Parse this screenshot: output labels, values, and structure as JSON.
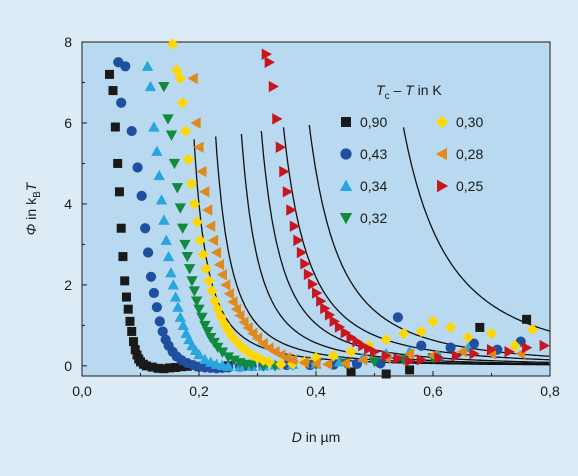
{
  "chart_data": {
    "type": "scatter",
    "title": "",
    "xlabel": {
      "var": "D",
      "rest": " in µm"
    },
    "ylabel": {
      "var": "Φ",
      "rest": " in k",
      "sub": "B",
      "end": "T"
    },
    "xlim": [
      0.0,
      0.8
    ],
    "ylim": [
      -0.25,
      8.0
    ],
    "x_ticks": [
      {
        "value": 0.0,
        "label": "0,0"
      },
      {
        "value": 0.2,
        "label": "0,2"
      },
      {
        "value": 0.4,
        "label": "0,4"
      },
      {
        "value": 0.6,
        "label": "0,6"
      },
      {
        "value": 0.8,
        "label": "0,8"
      }
    ],
    "y_ticks": [
      {
        "value": 0,
        "label": "0"
      },
      {
        "value": 2,
        "label": "2"
      },
      {
        "value": 4,
        "label": "4"
      },
      {
        "value": 6,
        "label": "6"
      },
      {
        "value": 8,
        "label": "8"
      }
    ],
    "grid": false,
    "legend": {
      "placement": "top-right",
      "title": {
        "t1": "T",
        "sub": "c",
        "rest": " – ",
        "t2": "T",
        "end": " in K"
      }
    },
    "series": [
      {
        "name": "0,90",
        "marker": "square",
        "color": "#1a1a1a",
        "points": [
          [
            0.047,
            7.2
          ],
          [
            0.053,
            6.8
          ],
          [
            0.057,
            5.9
          ],
          [
            0.061,
            5.0
          ],
          [
            0.064,
            4.3
          ],
          [
            0.067,
            3.4
          ],
          [
            0.07,
            2.7
          ],
          [
            0.073,
            2.1
          ],
          [
            0.076,
            1.7
          ],
          [
            0.079,
            1.4
          ],
          [
            0.082,
            1.1
          ],
          [
            0.085,
            0.85
          ],
          [
            0.088,
            0.6
          ],
          [
            0.091,
            0.4
          ],
          [
            0.094,
            0.27
          ],
          [
            0.097,
            0.17
          ],
          [
            0.1,
            0.1
          ],
          [
            0.105,
            0.04
          ],
          [
            0.11,
            0.0
          ],
          [
            0.12,
            -0.03
          ],
          [
            0.13,
            -0.06
          ],
          [
            0.14,
            -0.07
          ],
          [
            0.15,
            -0.05
          ],
          [
            0.16,
            -0.04
          ],
          [
            0.17,
            -0.02
          ],
          [
            0.18,
            -0.01
          ],
          [
            0.2,
            -0.02
          ],
          [
            0.22,
            -0.01
          ],
          [
            0.25,
            0.0
          ],
          [
            0.28,
            0.0
          ],
          [
            0.46,
            -0.15
          ],
          [
            0.52,
            -0.2
          ],
          [
            0.56,
            -0.1
          ],
          [
            0.68,
            0.95
          ],
          [
            0.76,
            1.15
          ]
        ]
      },
      {
        "name": "0,43",
        "marker": "circle",
        "color": "#1f4fa0",
        "points": [
          [
            0.062,
            7.5
          ],
          [
            0.067,
            6.5
          ],
          [
            0.074,
            7.4
          ],
          [
            0.085,
            5.8
          ],
          [
            0.095,
            4.9
          ],
          [
            0.102,
            4.2
          ],
          [
            0.108,
            3.4
          ],
          [
            0.113,
            2.8
          ],
          [
            0.118,
            2.2
          ],
          [
            0.123,
            1.8
          ],
          [
            0.128,
            1.45
          ],
          [
            0.133,
            1.1
          ],
          [
            0.138,
            0.85
          ],
          [
            0.143,
            0.65
          ],
          [
            0.148,
            0.5
          ],
          [
            0.155,
            0.35
          ],
          [
            0.162,
            0.23
          ],
          [
            0.17,
            0.14
          ],
          [
            0.18,
            0.07
          ],
          [
            0.19,
            0.02
          ],
          [
            0.2,
            -0.02
          ],
          [
            0.21,
            -0.04
          ],
          [
            0.22,
            -0.05
          ],
          [
            0.23,
            -0.06
          ],
          [
            0.24,
            -0.05
          ],
          [
            0.25,
            -0.04
          ],
          [
            0.27,
            -0.02
          ],
          [
            0.29,
            0.0
          ],
          [
            0.31,
            0.01
          ],
          [
            0.35,
            0.02
          ],
          [
            0.39,
            0.02
          ],
          [
            0.43,
            0.03
          ],
          [
            0.47,
            0.05
          ],
          [
            0.51,
            0.06
          ],
          [
            0.54,
            1.2
          ],
          [
            0.58,
            0.5
          ],
          [
            0.63,
            0.45
          ],
          [
            0.67,
            0.55
          ],
          [
            0.71,
            0.4
          ],
          [
            0.75,
            0.6
          ]
        ]
      },
      {
        "name": "0,34",
        "marker": "triangle-up",
        "color": "#29a6e0",
        "points": [
          [
            0.112,
            7.4
          ],
          [
            0.117,
            6.9
          ],
          [
            0.123,
            5.9
          ],
          [
            0.128,
            5.3
          ],
          [
            0.132,
            4.7
          ],
          [
            0.136,
            4.1
          ],
          [
            0.14,
            3.6
          ],
          [
            0.144,
            3.1
          ],
          [
            0.148,
            2.7
          ],
          [
            0.152,
            2.3
          ],
          [
            0.156,
            2.0
          ],
          [
            0.16,
            1.7
          ],
          [
            0.164,
            1.45
          ],
          [
            0.168,
            1.2
          ],
          [
            0.173,
            1.0
          ],
          [
            0.178,
            0.8
          ],
          [
            0.183,
            0.65
          ],
          [
            0.188,
            0.5
          ],
          [
            0.194,
            0.38
          ],
          [
            0.2,
            0.28
          ],
          [
            0.21,
            0.16
          ],
          [
            0.22,
            0.09
          ],
          [
            0.23,
            0.04
          ],
          [
            0.24,
            0.01
          ],
          [
            0.25,
            -0.01
          ],
          [
            0.27,
            -0.02
          ],
          [
            0.29,
            -0.01
          ],
          [
            0.31,
            0.0
          ],
          [
            0.33,
            0.02
          ],
          [
            0.36,
            0.04
          ],
          [
            0.4,
            0.05
          ],
          [
            0.44,
            0.1
          ],
          [
            0.48,
            0.2
          ],
          [
            0.52,
            0.3
          ],
          [
            0.56,
            0.35
          ],
          [
            0.61,
            0.25
          ],
          [
            0.66,
            0.45
          ]
        ]
      },
      {
        "name": "0,32",
        "marker": "triangle-down",
        "color": "#128a3e",
        "points": [
          [
            0.14,
            6.9
          ],
          [
            0.147,
            6.1
          ],
          [
            0.153,
            5.7
          ],
          [
            0.158,
            5.0
          ],
          [
            0.163,
            4.4
          ],
          [
            0.168,
            3.9
          ],
          [
            0.172,
            3.4
          ],
          [
            0.176,
            3.0
          ],
          [
            0.18,
            2.7
          ],
          [
            0.184,
            2.4
          ],
          [
            0.188,
            2.1
          ],
          [
            0.192,
            1.85
          ],
          [
            0.196,
            1.6
          ],
          [
            0.2,
            1.4
          ],
          [
            0.205,
            1.2
          ],
          [
            0.21,
            1.0
          ],
          [
            0.215,
            0.85
          ],
          [
            0.22,
            0.7
          ],
          [
            0.226,
            0.58
          ],
          [
            0.232,
            0.46
          ],
          [
            0.24,
            0.34
          ],
          [
            0.25,
            0.22
          ],
          [
            0.26,
            0.14
          ],
          [
            0.27,
            0.08
          ],
          [
            0.28,
            0.04
          ],
          [
            0.29,
            0.02
          ],
          [
            0.31,
            0.0
          ],
          [
            0.33,
            0.0
          ],
          [
            0.36,
            0.02
          ],
          [
            0.4,
            0.04
          ],
          [
            0.45,
            0.07
          ],
          [
            0.5,
            0.1
          ],
          [
            0.55,
            0.15
          ],
          [
            0.6,
            0.2
          ]
        ]
      },
      {
        "name": "0,30",
        "marker": "diamond",
        "color": "#ffd700",
        "points": [
          [
            0.155,
            7.95
          ],
          [
            0.162,
            7.3
          ],
          [
            0.168,
            7.1
          ],
          [
            0.172,
            6.5
          ],
          [
            0.177,
            5.8
          ],
          [
            0.182,
            5.1
          ],
          [
            0.187,
            4.5
          ],
          [
            0.192,
            4.0
          ],
          [
            0.197,
            3.55
          ],
          [
            0.202,
            3.1
          ],
          [
            0.207,
            2.75
          ],
          [
            0.212,
            2.4
          ],
          [
            0.217,
            2.1
          ],
          [
            0.222,
            1.85
          ],
          [
            0.227,
            1.6
          ],
          [
            0.232,
            1.4
          ],
          [
            0.238,
            1.2
          ],
          [
            0.244,
            1.02
          ],
          [
            0.25,
            0.86
          ],
          [
            0.257,
            0.72
          ],
          [
            0.264,
            0.6
          ],
          [
            0.272,
            0.48
          ],
          [
            0.28,
            0.38
          ],
          [
            0.29,
            0.28
          ],
          [
            0.3,
            0.2
          ],
          [
            0.31,
            0.14
          ],
          [
            0.32,
            0.09
          ],
          [
            0.34,
            0.04
          ],
          [
            0.36,
            0.05
          ],
          [
            0.38,
            0.1
          ],
          [
            0.4,
            0.2
          ],
          [
            0.43,
            0.25
          ],
          [
            0.46,
            0.35
          ],
          [
            0.49,
            0.5
          ],
          [
            0.52,
            0.65
          ],
          [
            0.55,
            0.8
          ],
          [
            0.58,
            0.85
          ],
          [
            0.6,
            1.1
          ],
          [
            0.63,
            0.95
          ],
          [
            0.66,
            0.7
          ],
          [
            0.7,
            0.8
          ],
          [
            0.74,
            0.5
          ],
          [
            0.77,
            0.9
          ]
        ]
      },
      {
        "name": "0,28",
        "marker": "triangle-left",
        "color": "#e08a1e",
        "points": [
          [
            0.19,
            7.1
          ],
          [
            0.195,
            6.0
          ],
          [
            0.2,
            5.4
          ],
          [
            0.205,
            4.8
          ],
          [
            0.21,
            4.3
          ],
          [
            0.215,
            3.85
          ],
          [
            0.22,
            3.45
          ],
          [
            0.225,
            3.1
          ],
          [
            0.23,
            2.8
          ],
          [
            0.235,
            2.5
          ],
          [
            0.24,
            2.25
          ],
          [
            0.246,
            2.0
          ],
          [
            0.252,
            1.78
          ],
          [
            0.258,
            1.58
          ],
          [
            0.264,
            1.4
          ],
          [
            0.27,
            1.24
          ],
          [
            0.277,
            1.08
          ],
          [
            0.284,
            0.94
          ],
          [
            0.292,
            0.8
          ],
          [
            0.3,
            0.68
          ],
          [
            0.31,
            0.55
          ],
          [
            0.32,
            0.44
          ],
          [
            0.33,
            0.35
          ],
          [
            0.34,
            0.27
          ],
          [
            0.35,
            0.2
          ],
          [
            0.36,
            0.15
          ],
          [
            0.38,
            0.08
          ],
          [
            0.4,
            0.05
          ],
          [
            0.42,
            0.04
          ],
          [
            0.45,
            0.06
          ],
          [
            0.48,
            0.15
          ],
          [
            0.52,
            0.2
          ],
          [
            0.56,
            0.3
          ],
          [
            0.6,
            0.25
          ],
          [
            0.65,
            0.35
          ],
          [
            0.7,
            0.3
          ],
          [
            0.75,
            0.3
          ]
        ]
      },
      {
        "name": "0,25",
        "marker": "triangle-right",
        "color": "#c8161e",
        "points": [
          [
            0.315,
            7.7
          ],
          [
            0.32,
            7.5
          ],
          [
            0.327,
            6.9
          ],
          [
            0.333,
            6.1
          ],
          [
            0.339,
            5.4
          ],
          [
            0.345,
            4.8
          ],
          [
            0.351,
            4.3
          ],
          [
            0.357,
            3.85
          ],
          [
            0.363,
            3.45
          ],
          [
            0.369,
            3.1
          ],
          [
            0.375,
            2.8
          ],
          [
            0.381,
            2.52
          ],
          [
            0.387,
            2.26
          ],
          [
            0.394,
            2.02
          ],
          [
            0.401,
            1.8
          ],
          [
            0.408,
            1.6
          ],
          [
            0.415,
            1.42
          ],
          [
            0.423,
            1.26
          ],
          [
            0.431,
            1.1
          ],
          [
            0.44,
            0.96
          ],
          [
            0.45,
            0.82
          ],
          [
            0.46,
            0.7
          ],
          [
            0.47,
            0.6
          ],
          [
            0.48,
            0.5
          ],
          [
            0.49,
            0.42
          ],
          [
            0.5,
            0.35
          ],
          [
            0.52,
            0.25
          ],
          [
            0.54,
            0.18
          ],
          [
            0.56,
            0.12
          ],
          [
            0.58,
            0.15
          ],
          [
            0.61,
            0.2
          ],
          [
            0.64,
            0.25
          ],
          [
            0.67,
            0.3
          ],
          [
            0.7,
            0.4
          ],
          [
            0.73,
            0.35
          ],
          [
            0.76,
            0.45
          ],
          [
            0.79,
            0.5
          ]
        ]
      }
    ],
    "fits": [
      {
        "a": 0.11,
        "b": 0.145
      },
      {
        "a": 0.125,
        "b": 0.176
      },
      {
        "a": 0.14,
        "b": 0.214
      },
      {
        "a": 0.165,
        "b": 0.238
      },
      {
        "a": 0.21,
        "b": 0.258
      },
      {
        "a": 0.25,
        "b": 0.286
      },
      {
        "a": 0.375,
        "b": 0.395
      }
    ]
  }
}
